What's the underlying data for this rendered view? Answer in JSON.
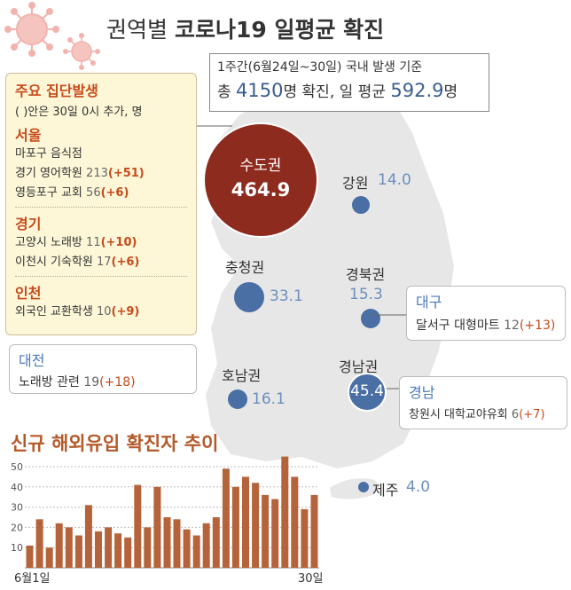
{
  "title": {
    "prefix": "권역별",
    "main": "코로나19 일평균 확진"
  },
  "summary": {
    "line1": "1주간(6월24일~30일) 국내 발생 기준",
    "line2_a": "총",
    "line2_total": "4150",
    "line2_b": "명 확진, 일 평균",
    "line2_avg": "592.9",
    "line2_c": "명"
  },
  "clusters": {
    "title": "주요 집단발생",
    "note": "( )안은 30일 0시 추가, 명",
    "sections": [
      {
        "name": "서울",
        "rows": [
          {
            "label": "마포구 음식점",
            "count": "",
            "add": ""
          },
          {
            "label": "경기 영어학원",
            "count": "213",
            "add": "(+51)"
          },
          {
            "label": "영등포구 교회",
            "count": "56",
            "add": "(+6)"
          }
        ]
      },
      {
        "name": "경기",
        "rows": [
          {
            "label": "고양시 노래방",
            "count": "11",
            "add": "(+10)"
          },
          {
            "label": "이천시 기숙학원",
            "count": "17",
            "add": "(+6)"
          }
        ]
      },
      {
        "name": "인천",
        "rows": [
          {
            "label": "외국인 교환학생",
            "count": "10",
            "add": "(+9)"
          }
        ]
      }
    ]
  },
  "callouts": {
    "daejeon": {
      "title": "대전",
      "label": "노래방 관련",
      "count": "19",
      "add": "(+18)"
    },
    "daegu": {
      "title": "대구",
      "label": "달서구 대형마트",
      "count": "12",
      "add": "(+13)"
    },
    "gyeongnam": {
      "title": "경남",
      "label": "창원시 대학교야유회",
      "count": "6",
      "add": "(+7)"
    }
  },
  "map": {
    "colors": {
      "land": "#e7e7e7",
      "sea": "#ffffff",
      "capital": "#8e2b1f",
      "bubble": "#4a6fa5"
    },
    "regions": [
      {
        "id": "capital",
        "name": "수도권",
        "value": 464.9
      },
      {
        "id": "gangwon",
        "name": "강원",
        "value": 14.0
      },
      {
        "id": "chungcheong",
        "name": "충청권",
        "value": 33.1
      },
      {
        "id": "gyeongbuk",
        "name": "경북권",
        "value": 15.3
      },
      {
        "id": "honam",
        "name": "호남권",
        "value": 16.1
      },
      {
        "id": "gyeongnam",
        "name": "경남권",
        "value": 45.4
      },
      {
        "id": "jeju",
        "name": "제주",
        "value": 4.0
      }
    ]
  },
  "chart_data": {
    "type": "bar",
    "title": "신규 해외유입 확진자 추이",
    "x_start_label": "6월1일",
    "x_end_label": "30일",
    "ylim": [
      0,
      57
    ],
    "yticks": [
      10,
      20,
      30,
      40,
      50
    ],
    "grid": true,
    "color": "#b5633a",
    "categories": [
      "6/1",
      "6/2",
      "6/3",
      "6/4",
      "6/5",
      "6/6",
      "6/7",
      "6/8",
      "6/9",
      "6/10",
      "6/11",
      "6/12",
      "6/13",
      "6/14",
      "6/15",
      "6/16",
      "6/17",
      "6/18",
      "6/19",
      "6/20",
      "6/21",
      "6/22",
      "6/23",
      "6/24",
      "6/25",
      "6/26",
      "6/27",
      "6/28",
      "6/29",
      "6/30"
    ],
    "values": [
      11,
      24,
      10,
      22,
      20,
      16,
      31,
      18,
      20,
      17,
      15,
      41,
      20,
      40,
      25,
      24,
      19,
      16,
      22,
      25,
      49,
      40,
      45,
      42,
      36,
      34,
      55,
      45,
      29,
      36
    ]
  }
}
